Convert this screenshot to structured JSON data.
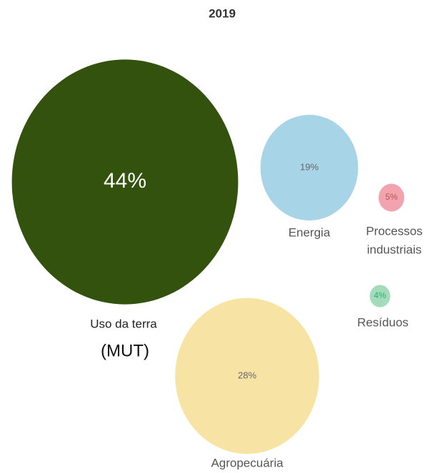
{
  "chart_data": {
    "type": "bubble",
    "title": "2019",
    "categories": [
      [
        "Uso da terra",
        "(MUT)"
      ],
      [
        "Energia"
      ],
      [
        "Processos",
        "industriais"
      ],
      [
        "Agropecuária"
      ],
      [
        "Resíduos"
      ]
    ],
    "values": [
      44,
      19,
      5,
      28,
      4
    ],
    "value_labels": [
      "44%",
      "19%",
      "5%",
      "28%",
      "4%"
    ],
    "colors": [
      "#33520e",
      "#a8d4e8",
      "#f2a3ad",
      "#f7e4a5",
      "#a3dcbb"
    ]
  }
}
